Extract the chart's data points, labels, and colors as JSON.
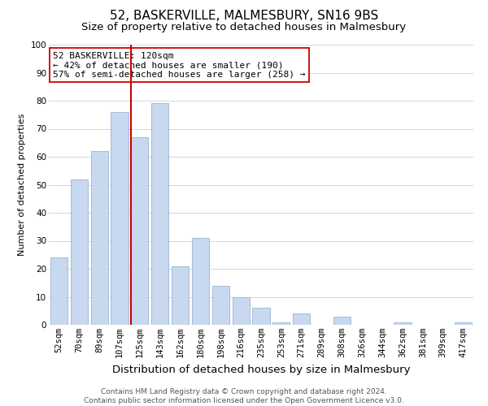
{
  "title": "52, BASKERVILLE, MALMESBURY, SN16 9BS",
  "subtitle": "Size of property relative to detached houses in Malmesbury",
  "xlabel": "Distribution of detached houses by size in Malmesbury",
  "ylabel": "Number of detached properties",
  "bar_labels": [
    "52sqm",
    "70sqm",
    "89sqm",
    "107sqm",
    "125sqm",
    "143sqm",
    "162sqm",
    "180sqm",
    "198sqm",
    "216sqm",
    "235sqm",
    "253sqm",
    "271sqm",
    "289sqm",
    "308sqm",
    "326sqm",
    "344sqm",
    "362sqm",
    "381sqm",
    "399sqm",
    "417sqm"
  ],
  "bar_values": [
    24,
    52,
    62,
    76,
    67,
    79,
    21,
    31,
    14,
    10,
    6,
    1,
    4,
    0,
    3,
    0,
    0,
    1,
    0,
    0,
    1
  ],
  "bar_color": "#c8d8ef",
  "bar_edge_color": "#9ab4d4",
  "vline_color": "#cc0000",
  "annotation_title": "52 BASKERVILLE: 120sqm",
  "annotation_line1": "← 42% of detached houses are smaller (190)",
  "annotation_line2": "57% of semi-detached houses are larger (258) →",
  "annotation_box_color": "#ffffff",
  "annotation_box_edge": "#cc0000",
  "footer_line1": "Contains HM Land Registry data © Crown copyright and database right 2024.",
  "footer_line2": "Contains public sector information licensed under the Open Government Licence v3.0.",
  "ylim": [
    0,
    100
  ],
  "title_fontsize": 11,
  "subtitle_fontsize": 9.5,
  "xlabel_fontsize": 9.5,
  "ylabel_fontsize": 8,
  "tick_fontsize": 7.5,
  "annotation_fontsize": 8,
  "footer_fontsize": 6.5,
  "bg_color": "#ffffff",
  "grid_color": "#cdd9e8"
}
